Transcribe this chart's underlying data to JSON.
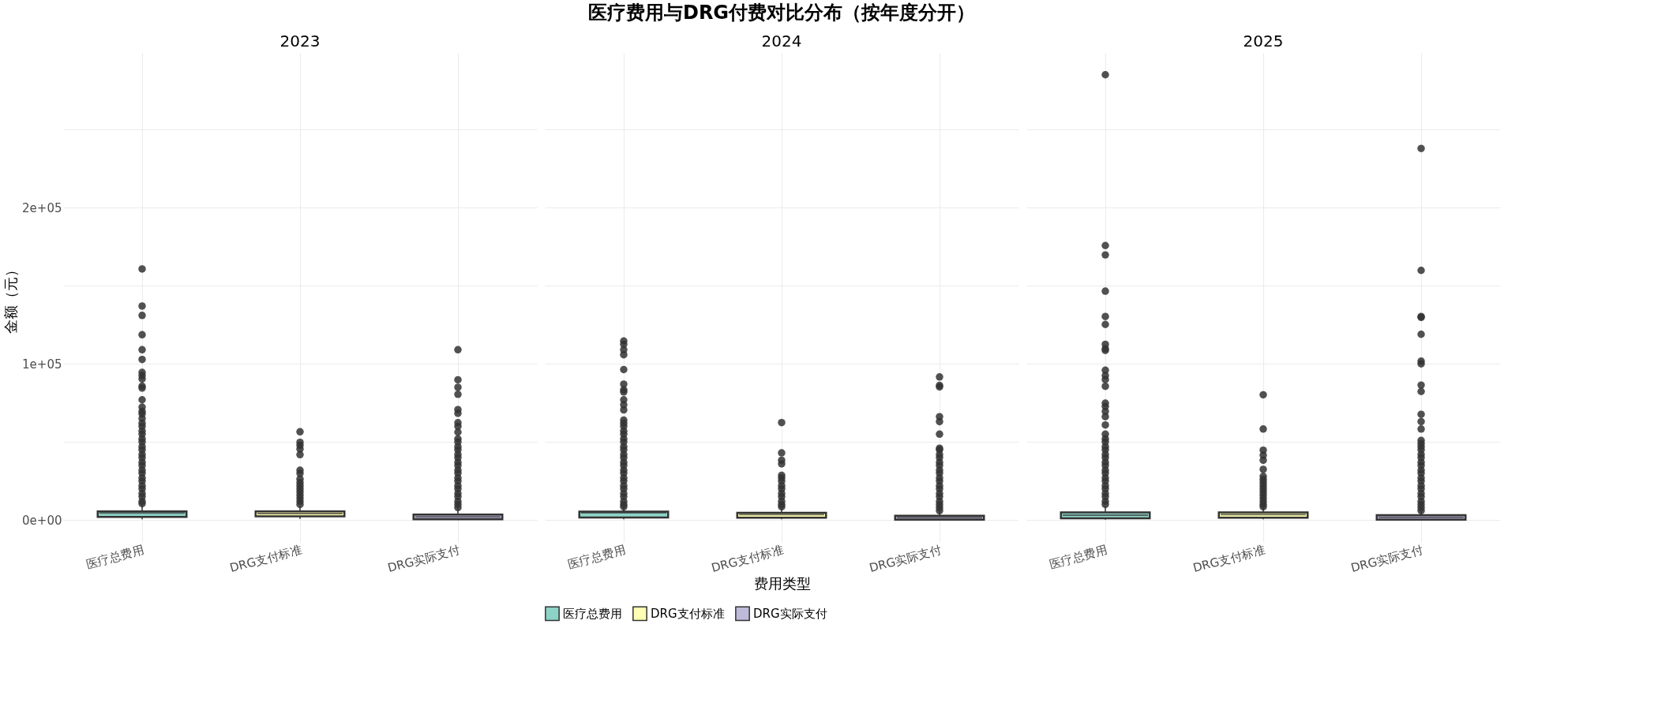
{
  "chart_data": [
    {
      "type": "box",
      "subtitle": "2023",
      "ylabel": "金额（元）",
      "categories": [
        "医疗总费用",
        "DRG支付标准",
        "DRG实际支付"
      ],
      "ylim": [
        -14000,
        299000
      ],
      "yticks": [
        {
          "value": 0,
          "label": "0e+00"
        },
        {
          "value": 50000,
          "label": null
        },
        {
          "value": 100000,
          "label": "1e+05"
        },
        {
          "value": 150000,
          "label": null
        },
        {
          "value": 200000,
          "label": "2e+05"
        },
        {
          "value": 250000,
          "label": null
        }
      ],
      "grid": true,
      "series": [
        {
          "color": "#8dd3c7",
          "boxes": [
            {
              "low": 500,
              "q1": 2000,
              "median": 4500,
              "q3": 5500,
              "high": 10500,
              "outliers": [
                160700,
                137000,
                131000,
                118600,
                109000,
                102800,
                94500,
                92500,
                90300,
                85700,
                84500,
                77000,
                72300,
                69500,
                68000,
                65000,
                62000,
                60000,
                57000,
                55000,
                52000,
                50000,
                47000,
                45000,
                42000,
                40000,
                37000,
                35000,
                32000,
                30000,
                27000,
                25000,
                22000,
                20000,
                17000,
                15000,
                12000,
                10500
              ]
            },
            null,
            null
          ]
        },
        {
          "color": "#ffffb3",
          "boxes": [
            null,
            {
              "low": 800,
              "q1": 2400,
              "median": 4200,
              "q3": 5500,
              "high": 9000,
              "outliers": [
                56500,
                49800,
                47900,
                45500,
                41900,
                31900,
                29900,
                26300,
                24000,
                22000,
                20000,
                18000,
                16000,
                14000,
                12000,
                10000
              ]
            },
            null
          ]
        },
        {
          "color": "#bebada",
          "boxes": [
            null,
            null,
            {
              "low": 0,
              "q1": 500,
              "median": 2000,
              "q3": 3600,
              "high": 7500,
              "outliers": [
                109000,
                89800,
                85000,
                80500,
                70700,
                68300,
                62300,
                60000,
                56300,
                52000,
                50000,
                47000,
                45000,
                42000,
                40000,
                37000,
                35000,
                32000,
                30000,
                27000,
                25000,
                22000,
                20000,
                17000,
                15000,
                12000,
                10000,
                8000
              ]
            }
          ]
        }
      ]
    },
    {
      "type": "box",
      "title": "医疗费用与DRG付费对比分布（按年度分开）",
      "subtitle": "2024",
      "xlabel": "费用类型",
      "categories": [
        "医疗总费用",
        "DRG支付标准",
        "DRG实际支付"
      ],
      "ylim": [
        -14000,
        299000
      ],
      "yticks": [
        {
          "value": 0,
          "label": null
        },
        {
          "value": 50000,
          "label": null
        },
        {
          "value": 100000,
          "label": null
        },
        {
          "value": 150000,
          "label": null
        },
        {
          "value": 200000,
          "label": null
        },
        {
          "value": 250000,
          "label": null
        }
      ],
      "grid": true,
      "tick_labels": "x",
      "legend": "bottom",
      "series": [
        {
          "name": "医疗总费用",
          "color": "#8dd3c7",
          "boxes": [
            {
              "low": 500,
              "q1": 1700,
              "median": 4700,
              "q3": 5400,
              "high": 8000,
              "outliers": [
                114600,
                112500,
                109000,
                105800,
                96300,
                87000,
                83400,
                82000,
                77000,
                73800,
                70500,
                64000,
                62000,
                60000,
                57000,
                55000,
                52000,
                50000,
                47000,
                45000,
                42000,
                40000,
                37000,
                35000,
                32000,
                30000,
                27000,
                25000,
                22000,
                20000,
                17000,
                15000,
                12000,
                10000,
                8500
              ]
            },
            null,
            null
          ]
        },
        {
          "name": "DRG支付标准",
          "color": "#ffffb3",
          "boxes": [
            null,
            {
              "low": 500,
              "q1": 1500,
              "median": 3500,
              "q3": 4700,
              "high": 8000,
              "outliers": [
                62400,
                43000,
                38300,
                36000,
                28600,
                27000,
                25000,
                22000,
                20000,
                17000,
                15000,
                12000,
                10000,
                8500
              ]
            },
            null
          ]
        },
        {
          "name": "DRG实际支付",
          "color": "#bebada",
          "boxes": [
            null,
            null,
            {
              "low": 0,
              "q1": 300,
              "median": 1500,
              "q3": 2800,
              "high": 5500,
              "outliers": [
                91600,
                86200,
                85200,
                66200,
                63000,
                55000,
                46000,
                45000,
                42000,
                40000,
                37000,
                35000,
                32000,
                30000,
                27000,
                25000,
                22000,
                20000,
                17000,
                15000,
                12000,
                10000,
                8000,
                6000
              ]
            }
          ]
        }
      ]
    },
    {
      "type": "box",
      "subtitle": "2025",
      "categories": [
        "医疗总费用",
        "DRG支付标准",
        "DRG实际支付"
      ],
      "ylim": [
        -14000,
        299000
      ],
      "yticks": [
        {
          "value": 0,
          "label": null
        },
        {
          "value": 50000,
          "label": null
        },
        {
          "value": 100000,
          "label": null
        },
        {
          "value": 150000,
          "label": null
        },
        {
          "value": 200000,
          "label": null
        },
        {
          "value": 250000,
          "label": null
        }
      ],
      "grid": true,
      "tick_labels": "x",
      "series": [
        {
          "color": "#8dd3c7",
          "boxes": [
            {
              "low": 300,
              "q1": 1100,
              "median": 3200,
              "q3": 4900,
              "high": 9000,
              "outliers": [
                285000,
                175700,
                169700,
                146500,
                130300,
                125200,
                112500,
                109700,
                108600,
                95900,
                92500,
                89900,
                85600,
                74800,
                72700,
                69500,
                66200,
                60900,
                55000,
                52000,
                50000,
                47000,
                45000,
                42000,
                40000,
                37000,
                35000,
                32000,
                30000,
                27000,
                25000,
                22000,
                20000,
                17000,
                15000,
                12000,
                10000
              ]
            },
            null,
            null
          ]
        },
        {
          "color": "#ffffb3",
          "boxes": [
            null,
            {
              "low": 500,
              "q1": 1500,
              "median": 3500,
              "q3": 4900,
              "high": 8000,
              "outliers": [
                80200,
                58300,
                44700,
                41500,
                38300,
                32500,
                28000,
                26000,
                24000,
                22000,
                20000,
                18000,
                16000,
                14000,
                12000,
                10000,
                8500
              ]
            },
            null
          ]
        },
        {
          "color": "#bebada",
          "boxes": [
            null,
            null,
            {
              "low": 0,
              "q1": 300,
              "median": 1800,
              "q3": 3200,
              "high": 5500,
              "outliers": [
                237800,
                159800,
                130300,
                129700,
                118900,
                101700,
                100000,
                86400,
                82300,
                67700,
                63000,
                58300,
                51000,
                49000,
                47000,
                45000,
                42000,
                40000,
                37000,
                35000,
                32000,
                30000,
                27000,
                25000,
                22000,
                20000,
                17000,
                15000,
                12000,
                10000,
                8000,
                6000
              ]
            }
          ]
        }
      ]
    }
  ]
}
